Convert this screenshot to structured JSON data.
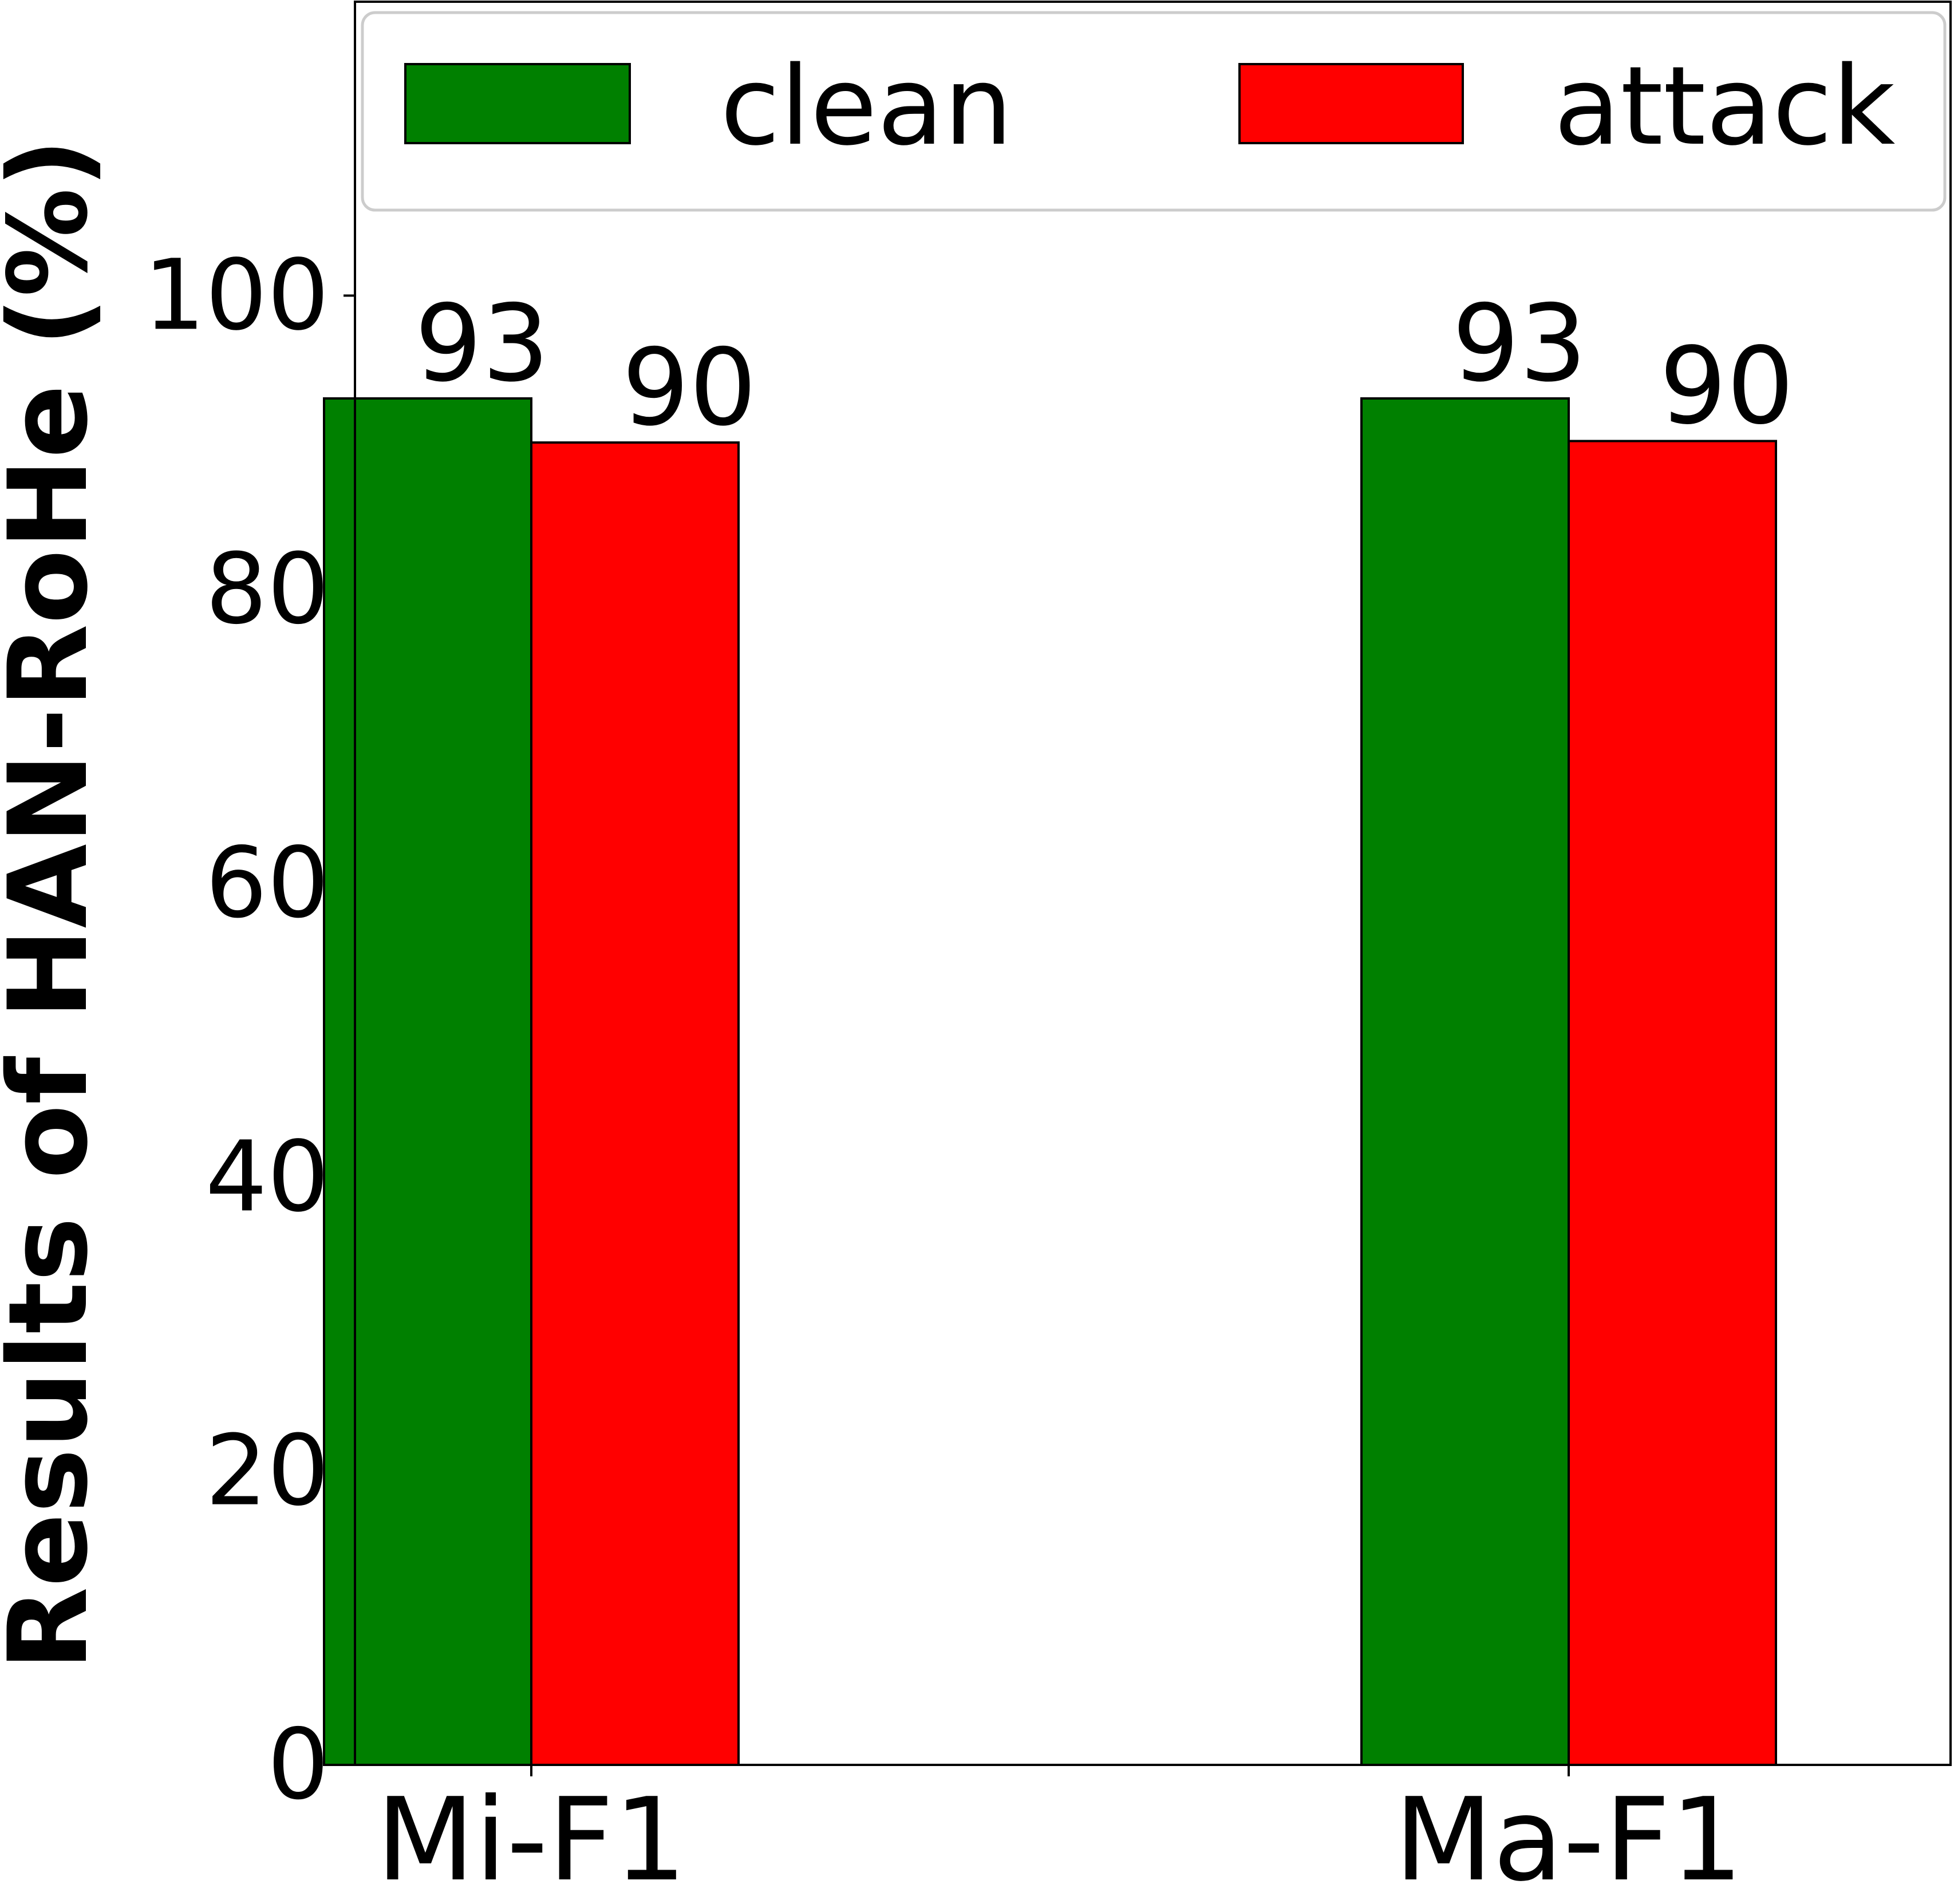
{
  "chart_data": {
    "type": "bar",
    "title": "",
    "xlabel": "",
    "ylabel": "Results of HAN-RoHe (%)",
    "ylim": [
      0,
      120
    ],
    "yticks": [
      0,
      20,
      40,
      60,
      80,
      100
    ],
    "categories": [
      "Mi-F1",
      "Ma-F1"
    ],
    "series": [
      {
        "name": "clean",
        "values": [
          93,
          93
        ],
        "labels": [
          "93",
          "93"
        ],
        "color": "#008000"
      },
      {
        "name": "attack",
        "values": [
          90,
          90.1
        ],
        "labels": [
          "90",
          "90"
        ],
        "color": "#ff0000"
      }
    ],
    "legend_position": "top",
    "grid": false
  }
}
